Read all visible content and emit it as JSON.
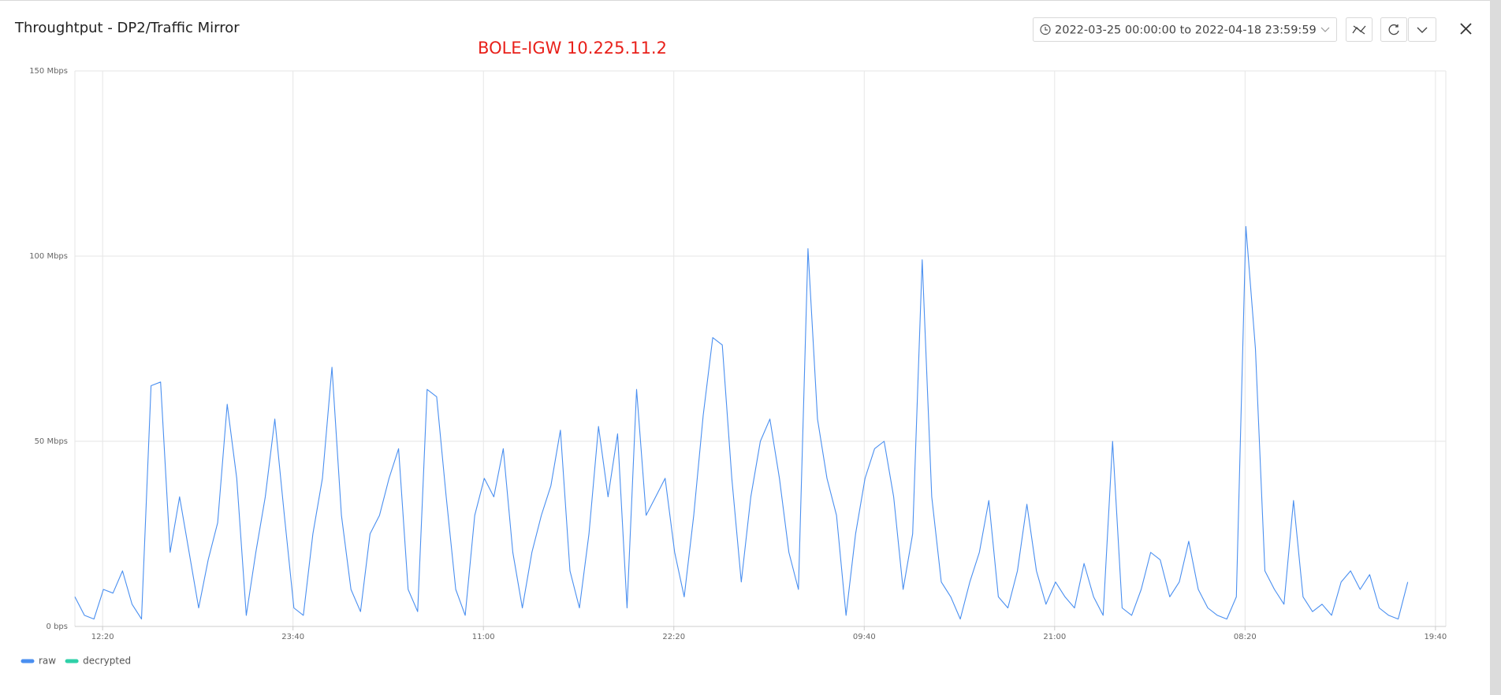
{
  "toolbar": {
    "date_range": "2022-03-25 00:00:00 to 2022-04-18 23:59:59"
  },
  "chart_data": {
    "type": "line",
    "title": "Throughtput - DP2/Traffic Mirror",
    "annotation": "BOLE-IGW 10.225.11.2",
    "x": [
      0,
      34,
      68,
      102,
      136,
      170,
      204,
      238,
      272,
      306,
      340,
      374,
      408,
      442,
      476,
      510,
      544,
      578,
      612,
      646,
      680,
      714,
      748,
      782,
      816,
      850,
      884,
      918,
      952,
      986,
      1020,
      1054,
      1088,
      1122,
      1156,
      1190,
      1224,
      1258,
      1292,
      1326,
      1360,
      1394,
      1428,
      1462,
      1496,
      1530,
      1564,
      1598,
      1632,
      1666,
      1700,
      1734,
      1768,
      1802,
      1836,
      1870,
      1904,
      1938,
      1972,
      2006,
      2040,
      2074,
      2108,
      2142,
      2176,
      2210,
      2244,
      2278,
      2312,
      2346,
      2380,
      2414,
      2448,
      2482,
      2516,
      2550,
      2584,
      2618,
      2652,
      2686,
      2720,
      2754,
      2788,
      2822,
      2856,
      2890,
      2924,
      2958,
      2992,
      3026,
      3060,
      3094,
      3128,
      3162,
      3196,
      3230,
      3264,
      3298,
      3332,
      3366,
      3400,
      3434,
      3468,
      3502,
      3536,
      3570,
      3604,
      3638,
      3672,
      3706,
      3740,
      3774,
      3808,
      3842,
      3876,
      3910,
      3944,
      3978,
      4012,
      4046,
      4080,
      4114,
      4148,
      4182,
      4216,
      4250,
      4284,
      4318,
      4352,
      4386,
      4420,
      4454,
      4488,
      4522,
      4556,
      4590,
      4624,
      4658,
      4692,
      4726,
      4760
    ],
    "series": [
      {
        "name": "raw",
        "color": "#4a8ff0",
        "values": [
          8,
          3,
          2,
          10,
          9,
          15,
          6,
          2,
          65,
          66,
          20,
          35,
          20,
          5,
          18,
          28,
          60,
          40,
          3,
          20,
          35,
          56,
          30,
          5,
          3,
          25,
          40,
          70,
          30,
          10,
          4,
          25,
          30,
          40,
          48,
          10,
          4,
          64,
          62,
          35,
          10,
          3,
          30,
          40,
          35,
          48,
          20,
          5,
          20,
          30,
          38,
          53,
          15,
          5,
          25,
          54,
          35,
          52,
          5,
          64,
          30,
          35,
          40,
          20,
          8,
          30,
          57,
          78,
          76,
          40,
          12,
          35,
          50,
          56,
          40,
          20,
          10,
          102,
          56,
          40,
          30,
          3,
          25,
          40,
          48,
          50,
          35,
          10,
          25,
          99,
          35,
          12,
          8,
          2,
          12,
          20,
          34,
          8,
          5,
          15,
          33,
          15,
          6,
          12,
          8,
          5,
          17,
          8,
          3,
          50,
          5,
          3,
          10,
          20,
          18,
          8,
          12,
          23,
          10,
          5,
          3,
          2,
          8,
          108,
          75,
          15,
          10,
          6,
          34,
          8,
          4,
          6,
          3,
          12,
          15,
          10,
          14,
          5,
          3,
          2,
          12
        ]
      },
      {
        "name": "decrypted",
        "color": "#2fd0a8",
        "values": [
          0,
          0,
          0,
          0,
          0,
          0,
          0,
          0,
          0,
          0,
          0,
          0,
          0,
          0,
          0,
          0,
          0,
          0,
          0,
          0,
          0,
          0,
          0,
          0,
          0,
          0,
          0,
          0,
          0,
          0,
          0,
          0,
          0,
          0,
          0,
          0,
          0,
          0,
          0,
          0,
          0,
          0,
          0,
          0,
          0,
          0,
          0,
          0,
          0,
          0,
          0,
          0,
          0,
          0,
          0,
          0,
          0,
          0,
          0,
          0,
          0,
          0,
          0,
          0,
          0,
          0,
          0,
          0,
          0,
          0,
          0,
          0,
          0,
          0,
          0,
          0,
          0,
          0,
          0,
          0,
          0,
          0,
          0,
          0,
          0,
          0,
          0,
          0,
          0,
          0,
          0,
          0,
          0,
          0,
          0,
          0,
          0,
          0,
          0,
          0,
          0,
          0,
          0,
          0,
          0,
          0,
          0,
          0,
          0,
          0,
          0,
          0,
          0,
          0,
          0,
          0,
          0,
          0,
          0,
          0,
          0,
          0,
          0,
          0,
          0,
          0,
          0,
          0,
          0,
          0,
          0,
          0,
          0,
          0,
          0,
          0,
          0,
          0,
          0,
          0,
          0
        ]
      }
    ],
    "xlim": [
      0,
      4896
    ],
    "xticks": [
      {
        "value": 99,
        "label": "12:20"
      },
      {
        "value": 779,
        "label": "23:40"
      },
      {
        "value": 1459,
        "label": "11:00"
      },
      {
        "value": 2139,
        "label": "22:20"
      },
      {
        "value": 2819,
        "label": "09:40"
      },
      {
        "value": 3499,
        "label": "21:00"
      },
      {
        "value": 4179,
        "label": "08:20"
      },
      {
        "value": 4859,
        "label": "19:40"
      }
    ],
    "ylim": [
      0,
      150
    ],
    "yticks": [
      {
        "value": 0,
        "label": "0 bps"
      },
      {
        "value": 50,
        "label": "50 Mbps"
      },
      {
        "value": 100,
        "label": "100 Mbps"
      },
      {
        "value": 150,
        "label": "150 Mbps"
      }
    ],
    "grid": true,
    "legend": "bottom-left"
  }
}
